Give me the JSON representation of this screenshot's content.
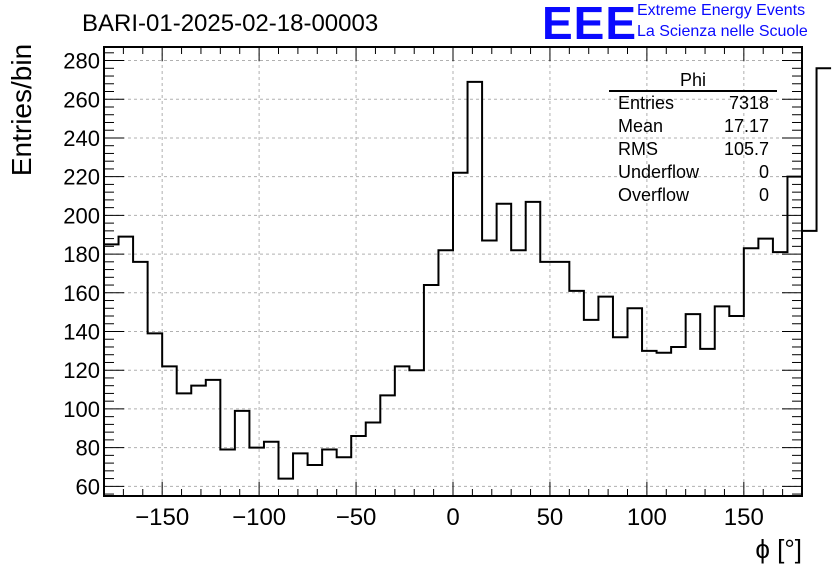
{
  "chart_data": {
    "type": "bar",
    "title": "BARI-01-2025-02-18-00003",
    "xlabel": "ϕ [°]",
    "ylabel": "Entries/bin",
    "xlim": [
      -180,
      180
    ],
    "ylim": [
      55,
      287
    ],
    "xticks": [
      -150,
      -100,
      -50,
      0,
      50,
      100,
      150
    ],
    "yticks": [
      60,
      80,
      100,
      120,
      140,
      160,
      180,
      200,
      220,
      240,
      260,
      280
    ],
    "grid": true,
    "bin_width": 7.5,
    "bin_edges_start": -180,
    "values": [
      185,
      189,
      176,
      139,
      122,
      108,
      112,
      115,
      79,
      99,
      80,
      83,
      64,
      77,
      71,
      79,
      75,
      86,
      93,
      107,
      122,
      120,
      164,
      182,
      222,
      269,
      187,
      206,
      182,
      207,
      176,
      176,
      161,
      146,
      158,
      137,
      152,
      130,
      129,
      132,
      149,
      131,
      153,
      148,
      183,
      188,
      181,
      220,
      192,
      276
    ],
    "stats_box": {
      "name": "Phi",
      "rows": [
        {
          "key": "Entries",
          "value": "7318"
        },
        {
          "key": "Mean",
          "value": "17.17"
        },
        {
          "key": "RMS",
          "value": "105.7"
        },
        {
          "key": "Underflow",
          "value": "0"
        },
        {
          "key": "Overflow",
          "value": "0"
        }
      ]
    }
  },
  "logo": {
    "mark": "EEE",
    "line1": "Extreme Energy Events",
    "line2": "La Scienza nelle Scuole",
    "color": "#0a0aff"
  }
}
